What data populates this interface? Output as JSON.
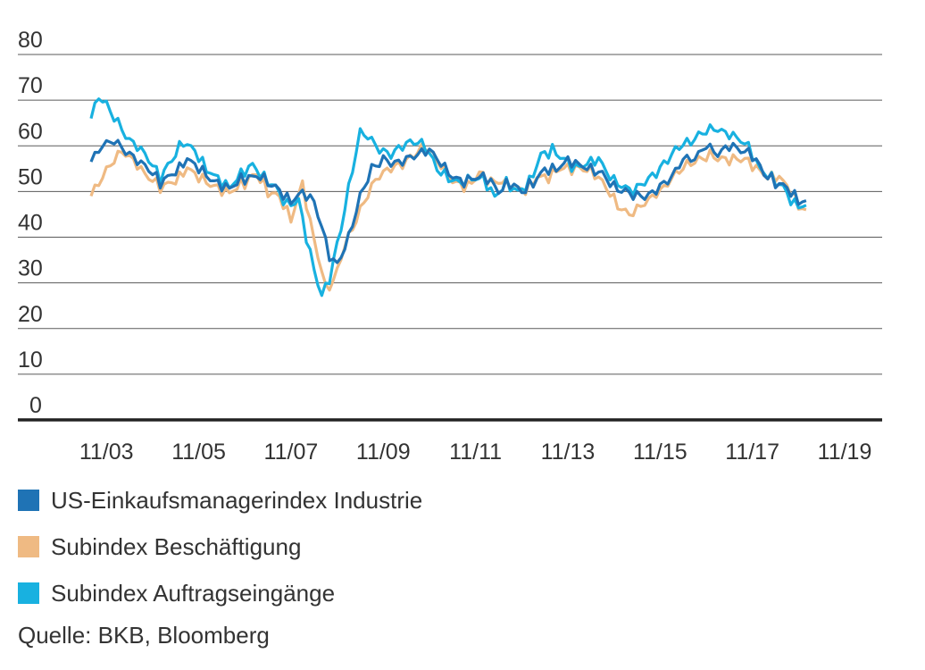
{
  "chart_data": {
    "type": "line",
    "x_start": "2003-07",
    "x_end": "2019-11",
    "x_unit": "monthly",
    "ylim": [
      0,
      80
    ],
    "y_ticks": [
      0,
      10,
      20,
      30,
      40,
      50,
      60,
      70,
      80
    ],
    "x_ticks": [
      "11/03",
      "11/05",
      "11/07",
      "11/09",
      "11/11",
      "11/13",
      "11/15",
      "11/17",
      "11/19"
    ],
    "grid": true,
    "legend_position": "bottom-left",
    "series": [
      {
        "name": "US-Einkaufsmanagerindex Industrie",
        "color": "#1f73b5",
        "anchors": [
          [
            0,
            56.5
          ],
          [
            3,
            60
          ],
          [
            6,
            61
          ],
          [
            10,
            58
          ],
          [
            14,
            56
          ],
          [
            18,
            52
          ],
          [
            22,
            54
          ],
          [
            25,
            57
          ],
          [
            28,
            55
          ],
          [
            32,
            52
          ],
          [
            36,
            51
          ],
          [
            40,
            53
          ],
          [
            44,
            53
          ],
          [
            48,
            51
          ],
          [
            52,
            48
          ],
          [
            55,
            50
          ],
          [
            58,
            48
          ],
          [
            60,
            42
          ],
          [
            62,
            36
          ],
          [
            64,
            34
          ],
          [
            67,
            40
          ],
          [
            70,
            49
          ],
          [
            73,
            55
          ],
          [
            76,
            57
          ],
          [
            79,
            56
          ],
          [
            82,
            57
          ],
          [
            85,
            58
          ],
          [
            88,
            59
          ],
          [
            91,
            56
          ],
          [
            94,
            53
          ],
          [
            97,
            52
          ],
          [
            100,
            53
          ],
          [
            103,
            53
          ],
          [
            106,
            50
          ],
          [
            109,
            52
          ],
          [
            112,
            50
          ],
          [
            115,
            52
          ],
          [
            118,
            55
          ],
          [
            121,
            55
          ],
          [
            124,
            57
          ],
          [
            127,
            56
          ],
          [
            130,
            55
          ],
          [
            133,
            54
          ],
          [
            136,
            51
          ],
          [
            139,
            50
          ],
          [
            142,
            49
          ],
          [
            145,
            49
          ],
          [
            148,
            51
          ],
          [
            151,
            53
          ],
          [
            154,
            57
          ],
          [
            157,
            57
          ],
          [
            160,
            60
          ],
          [
            163,
            58
          ],
          [
            166,
            60
          ],
          [
            169,
            59
          ],
          [
            172,
            58
          ],
          [
            175,
            54
          ],
          [
            178,
            52
          ],
          [
            181,
            51
          ],
          [
            184,
            48
          ],
          [
            186,
            48
          ]
        ]
      },
      {
        "name": "Subindex Beschäftigung",
        "color": "#efba83",
        "anchors": [
          [
            0,
            49
          ],
          [
            2,
            52
          ],
          [
            5,
            56
          ],
          [
            8,
            59
          ],
          [
            11,
            57
          ],
          [
            14,
            54
          ],
          [
            18,
            51
          ],
          [
            22,
            52
          ],
          [
            25,
            55
          ],
          [
            28,
            53
          ],
          [
            32,
            51
          ],
          [
            36,
            50
          ],
          [
            40,
            52
          ],
          [
            43,
            54
          ],
          [
            46,
            50
          ],
          [
            49,
            49
          ],
          [
            52,
            44
          ],
          [
            55,
            52
          ],
          [
            57,
            43
          ],
          [
            59,
            36
          ],
          [
            61,
            29
          ],
          [
            63,
            30
          ],
          [
            66,
            38
          ],
          [
            70,
            46
          ],
          [
            74,
            53
          ],
          [
            78,
            55
          ],
          [
            81,
            56
          ],
          [
            84,
            58
          ],
          [
            87,
            60
          ],
          [
            90,
            57
          ],
          [
            94,
            52
          ],
          [
            98,
            51
          ],
          [
            101,
            54
          ],
          [
            104,
            52
          ],
          [
            107,
            52
          ],
          [
            110,
            51
          ],
          [
            113,
            50
          ],
          [
            116,
            53
          ],
          [
            119,
            53
          ],
          [
            122,
            55
          ],
          [
            125,
            55
          ],
          [
            128,
            55
          ],
          [
            131,
            54
          ],
          [
            134,
            51
          ],
          [
            137,
            47
          ],
          [
            140,
            45
          ],
          [
            143,
            47
          ],
          [
            146,
            49
          ],
          [
            149,
            51
          ],
          [
            152,
            54
          ],
          [
            155,
            56
          ],
          [
            158,
            57
          ],
          [
            161,
            58
          ],
          [
            164,
            57
          ],
          [
            167,
            57
          ],
          [
            170,
            57
          ],
          [
            173,
            55
          ],
          [
            176,
            53
          ],
          [
            179,
            53
          ],
          [
            182,
            50
          ],
          [
            184,
            47
          ],
          [
            186,
            46
          ]
        ]
      },
      {
        "name": "Subindex Auftragseingänge",
        "color": "#18b1e0",
        "anchors": [
          [
            0,
            66
          ],
          [
            2,
            71
          ],
          [
            4,
            69
          ],
          [
            7,
            65
          ],
          [
            10,
            61
          ],
          [
            12,
            60
          ],
          [
            15,
            57
          ],
          [
            18,
            53
          ],
          [
            21,
            57
          ],
          [
            24,
            61
          ],
          [
            27,
            59
          ],
          [
            30,
            55
          ],
          [
            33,
            53
          ],
          [
            36,
            51
          ],
          [
            39,
            54
          ],
          [
            42,
            56
          ],
          [
            45,
            53
          ],
          [
            48,
            51
          ],
          [
            51,
            47
          ],
          [
            54,
            48
          ],
          [
            56,
            40
          ],
          [
            58,
            33
          ],
          [
            60,
            27
          ],
          [
            62,
            31
          ],
          [
            65,
            42
          ],
          [
            68,
            55
          ],
          [
            70,
            63
          ],
          [
            72,
            62
          ],
          [
            75,
            59
          ],
          [
            78,
            58
          ],
          [
            81,
            60
          ],
          [
            84,
            61
          ],
          [
            87,
            60
          ],
          [
            90,
            55
          ],
          [
            93,
            53
          ],
          [
            96,
            52
          ],
          [
            99,
            53
          ],
          [
            102,
            53
          ],
          [
            105,
            49
          ],
          [
            108,
            52
          ],
          [
            111,
            50
          ],
          [
            114,
            52
          ],
          [
            117,
            58
          ],
          [
            120,
            59
          ],
          [
            123,
            57
          ],
          [
            126,
            55
          ],
          [
            129,
            56
          ],
          [
            132,
            57
          ],
          [
            135,
            53
          ],
          [
            138,
            51
          ],
          [
            141,
            50
          ],
          [
            144,
            52
          ],
          [
            147,
            54
          ],
          [
            150,
            57
          ],
          [
            153,
            60
          ],
          [
            156,
            61
          ],
          [
            159,
            63
          ],
          [
            162,
            64
          ],
          [
            165,
            63
          ],
          [
            168,
            62
          ],
          [
            171,
            60
          ],
          [
            174,
            55
          ],
          [
            177,
            53
          ],
          [
            180,
            51
          ],
          [
            183,
            47
          ],
          [
            186,
            47
          ]
        ]
      }
    ]
  },
  "source_label": "Quelle: BKB, Bloomberg"
}
